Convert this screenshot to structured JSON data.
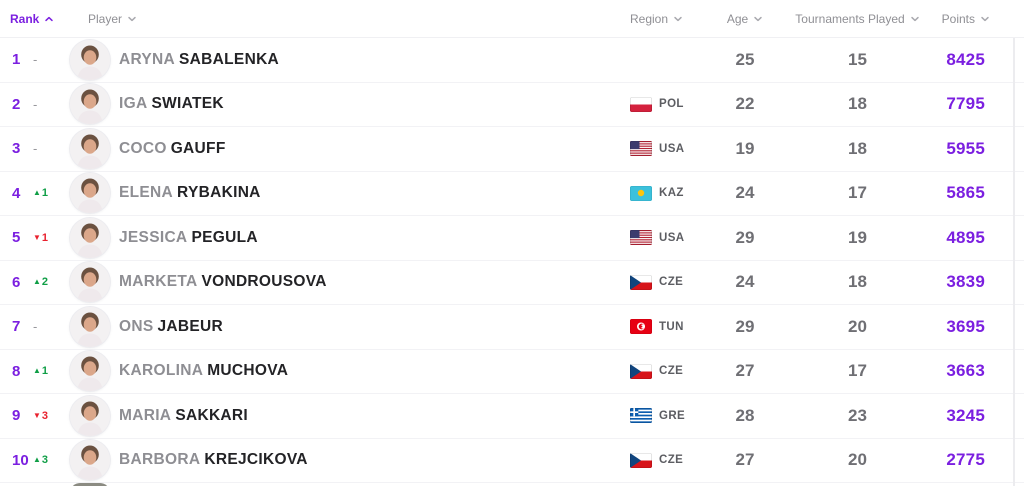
{
  "table": {
    "columns": [
      {
        "label": "Rank",
        "sorted": "asc"
      },
      {
        "label": "Player",
        "sorted": ""
      },
      {
        "label": "Region",
        "sorted": ""
      },
      {
        "label": "Age",
        "sorted": ""
      },
      {
        "label": "Tournaments Played",
        "sorted": ""
      },
      {
        "label": "Points",
        "sorted": ""
      }
    ],
    "rows": [
      {
        "rank": "1",
        "change_dir": "none",
        "change_value": "-",
        "first": "ARYNA",
        "last": "SABALENKA",
        "country": "",
        "age": "25",
        "tournaments": "15",
        "points": "8425"
      },
      {
        "rank": "2",
        "change_dir": "none",
        "change_value": "-",
        "first": "IGA",
        "last": "SWIATEK",
        "country": "POL",
        "age": "22",
        "tournaments": "18",
        "points": "7795"
      },
      {
        "rank": "3",
        "change_dir": "none",
        "change_value": "-",
        "first": "COCO",
        "last": "GAUFF",
        "country": "USA",
        "age": "19",
        "tournaments": "18",
        "points": "5955"
      },
      {
        "rank": "4",
        "change_dir": "up",
        "change_value": "1",
        "first": "ELENA",
        "last": "RYBAKINA",
        "country": "KAZ",
        "age": "24",
        "tournaments": "17",
        "points": "5865"
      },
      {
        "rank": "5",
        "change_dir": "down",
        "change_value": "1",
        "first": "JESSICA",
        "last": "PEGULA",
        "country": "USA",
        "age": "29",
        "tournaments": "19",
        "points": "4895"
      },
      {
        "rank": "6",
        "change_dir": "up",
        "change_value": "2",
        "first": "MARKETA",
        "last": "VONDROUSOVA",
        "country": "CZE",
        "age": "24",
        "tournaments": "18",
        "points": "3839"
      },
      {
        "rank": "7",
        "change_dir": "none",
        "change_value": "-",
        "first": "ONS",
        "last": "JABEUR",
        "country": "TUN",
        "age": "29",
        "tournaments": "20",
        "points": "3695"
      },
      {
        "rank": "8",
        "change_dir": "up",
        "change_value": "1",
        "first": "KAROLINA",
        "last": "MUCHOVA",
        "country": "CZE",
        "age": "27",
        "tournaments": "17",
        "points": "3663"
      },
      {
        "rank": "9",
        "change_dir": "down",
        "change_value": "3",
        "first": "MARIA",
        "last": "SAKKARI",
        "country": "GRE",
        "age": "28",
        "tournaments": "23",
        "points": "3245"
      },
      {
        "rank": "10",
        "change_dir": "up",
        "change_value": "3",
        "first": "BARBORA",
        "last": "KREJCIKOVA",
        "country": "CZE",
        "age": "27",
        "tournaments": "20",
        "points": "2775"
      }
    ]
  },
  "colors": {
    "accent_purple": "#7b1fe0",
    "up_green": "#0f9e46",
    "down_red": "#e8212e"
  }
}
